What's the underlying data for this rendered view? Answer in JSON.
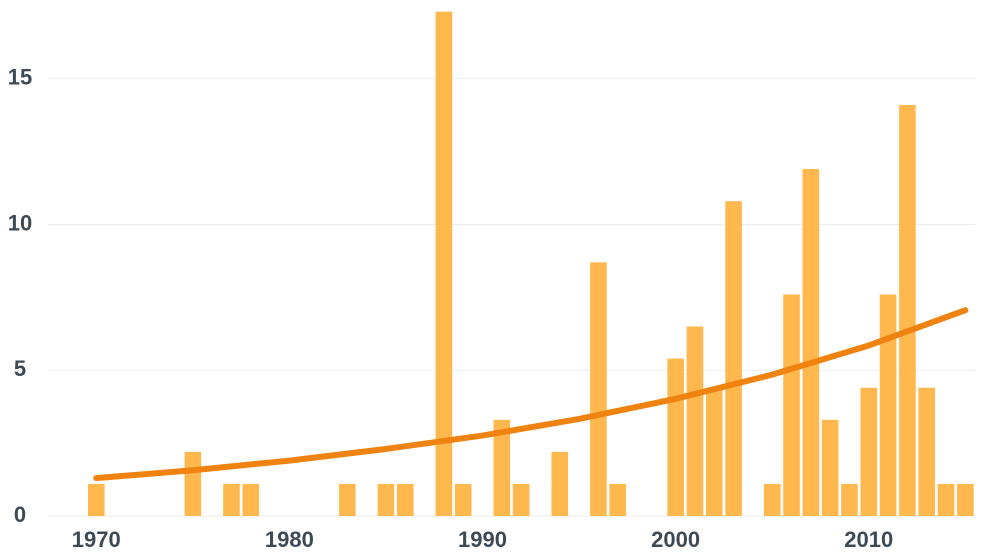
{
  "chart_data": {
    "type": "bar",
    "x": [
      1970,
      1971,
      1972,
      1973,
      1974,
      1975,
      1976,
      1977,
      1978,
      1979,
      1980,
      1981,
      1982,
      1983,
      1984,
      1985,
      1986,
      1987,
      1988,
      1989,
      1990,
      1991,
      1992,
      1993,
      1994,
      1995,
      1996,
      1997,
      1998,
      1999,
      2000,
      2001,
      2002,
      2003,
      2004,
      2005,
      2006,
      2007,
      2008,
      2009,
      2010,
      2011,
      2012,
      2013,
      2014,
      2015
    ],
    "values": [
      1.1,
      0,
      0,
      0,
      0,
      2.2,
      0,
      1.1,
      1.1,
      0,
      0,
      0,
      0,
      1.1,
      0,
      1.1,
      1.1,
      0,
      17.3,
      1.1,
      0,
      3.3,
      1.1,
      0,
      2.2,
      0,
      8.7,
      1.1,
      0,
      0,
      5.4,
      6.5,
      4.4,
      10.8,
      0,
      1.1,
      7.6,
      11.9,
      3.3,
      1.1,
      4.4,
      7.6,
      14.1,
      4.4,
      1.1,
      1.1
    ],
    "color": "#ffb84d",
    "trend": {
      "x": [
        1970,
        1975,
        1980,
        1985,
        1990,
        1995,
        2000,
        2005,
        2010,
        2015
      ],
      "values": [
        1.3,
        1.57,
        1.9,
        2.3,
        2.76,
        3.33,
        4.02,
        4.85,
        5.85,
        7.06
      ],
      "color": "#f0830f"
    },
    "xlim": [
      1967.5,
      2015.5
    ],
    "xticks": [
      1970,
      1980,
      1990,
      2000,
      2010
    ],
    "ylim": [
      0,
      17.7
    ],
    "yticks": [
      0,
      5,
      10,
      15
    ],
    "grid": true
  }
}
